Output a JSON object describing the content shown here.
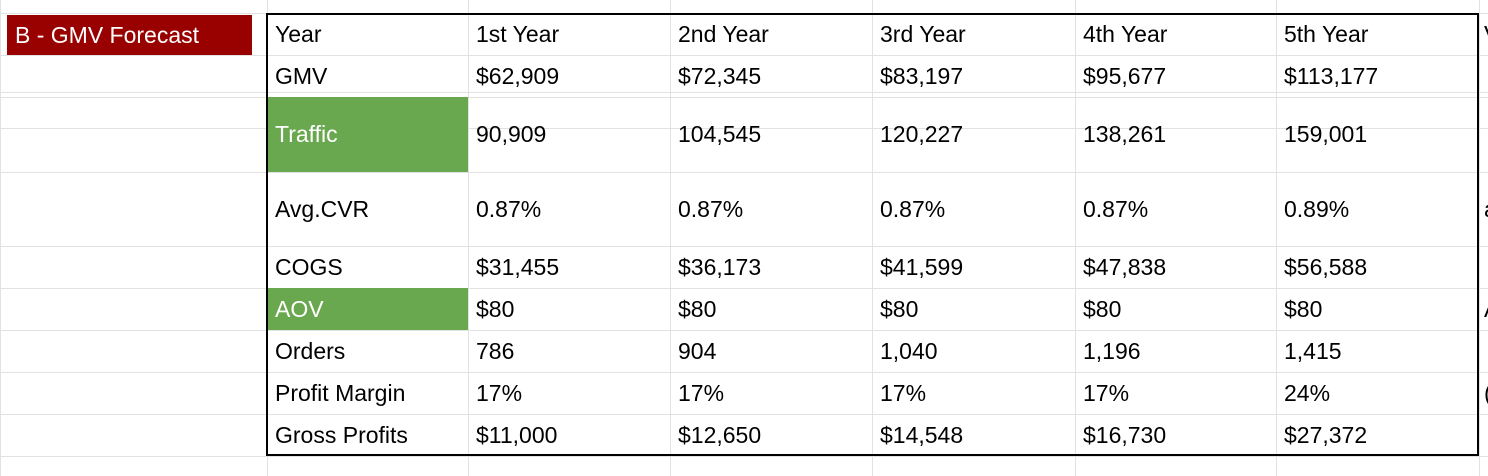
{
  "section_label": "B - GMV Forecast",
  "colors": {
    "label_bg": "#990000",
    "highlight_green": "#6aa84f",
    "gridline": "#e2e2e2"
  },
  "table": {
    "header": [
      "Year",
      "1st Year",
      "2nd Year",
      "3rd Year",
      "4th Year",
      "5th Year"
    ],
    "rows": [
      {
        "label": "GMV",
        "highlight": false,
        "values": [
          "$62,909",
          "$72,345",
          "$83,197",
          "$95,677",
          "$113,177"
        ]
      },
      {
        "label": "Traffic",
        "highlight": true,
        "values": [
          "90,909",
          "104,545",
          "120,227",
          "138,261",
          "159,001"
        ]
      },
      {
        "label": "Avg.CVR",
        "highlight": false,
        "values": [
          "0.87%",
          "0.87%",
          "0.87%",
          "0.87%",
          "0.89%"
        ]
      },
      {
        "label": "COGS",
        "highlight": false,
        "values": [
          "$31,455",
          "$36,173",
          "$41,599",
          "$47,838",
          "$56,588"
        ]
      },
      {
        "label": "AOV",
        "highlight": true,
        "values": [
          "$80",
          "$80",
          "$80",
          "$80",
          "$80"
        ]
      },
      {
        "label": "Orders",
        "highlight": false,
        "values": [
          "786",
          "904",
          "1,040",
          "1,196",
          "1,415"
        ]
      },
      {
        "label": "Profit Margin",
        "highlight": false,
        "values": [
          "17%",
          "17%",
          "17%",
          "17%",
          "24%"
        ]
      },
      {
        "label": "Gross Profits",
        "highlight": false,
        "values": [
          "$11,000",
          "$12,650",
          "$14,548",
          "$16,730",
          "$27,372"
        ]
      }
    ]
  },
  "cutoff_column": [
    "V",
    "a",
    "A",
    "("
  ]
}
